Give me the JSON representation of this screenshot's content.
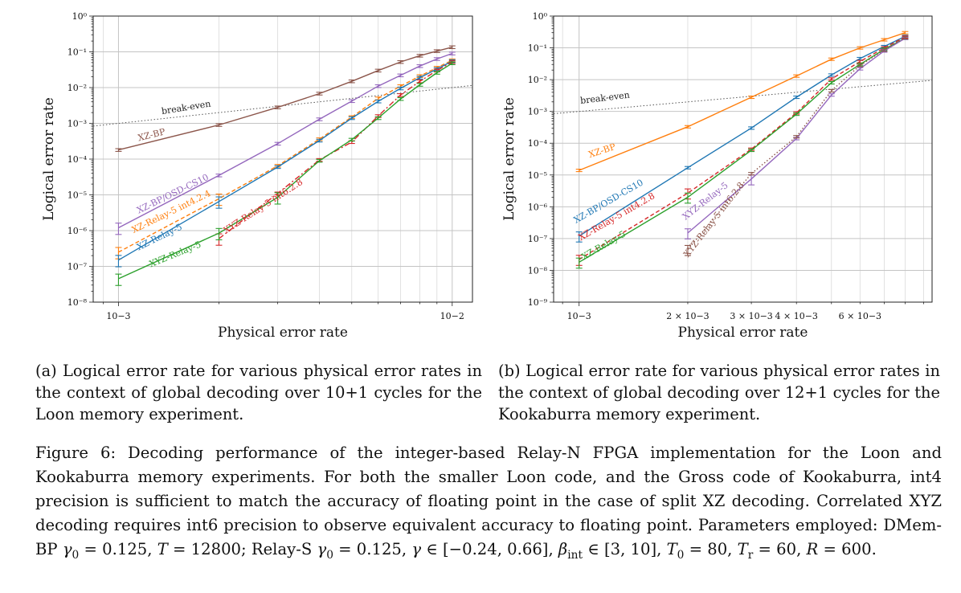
{
  "chart_data": [
    {
      "type": "line",
      "panel": "a",
      "xlabel": "Physical error rate",
      "ylabel": "Logical error rate",
      "xscale": "log",
      "yscale": "log",
      "xlim": [
        0.00084,
        0.0115
      ],
      "ylim": [
        1e-08,
        1
      ],
      "grid": true,
      "xticks": [
        {
          "value": 0.001,
          "label": "10−3"
        },
        {
          "value": 0.01,
          "label": "10−2"
        }
      ],
      "yticks": [
        {
          "value": 1,
          "label": "10⁰"
        },
        {
          "value": 0.1,
          "label": "10⁻¹"
        },
        {
          "value": 0.01,
          "label": "10⁻²"
        },
        {
          "value": 0.001,
          "label": "10⁻³"
        },
        {
          "value": 0.0001,
          "label": "10⁻⁴"
        },
        {
          "value": 1e-05,
          "label": "10⁻⁵"
        },
        {
          "value": 1e-06,
          "label": "10⁻⁶"
        },
        {
          "value": 1e-07,
          "label": "10⁻⁷"
        },
        {
          "value": 1e-08,
          "label": "10⁻⁸"
        }
      ],
      "series": [
        {
          "name": "break-even",
          "color": "#555555",
          "style": "dotted",
          "x": [
            0.00084,
            0.0115
          ],
          "y": [
            0.00084,
            0.0115
          ]
        },
        {
          "name": "XZ-BP",
          "color": "#8c564b",
          "style": "solid",
          "x": [
            0.001,
            0.002,
            0.003,
            0.004,
            0.005,
            0.006,
            0.007,
            0.008,
            0.009,
            0.01
          ],
          "y": [
            0.00018,
            0.0009,
            0.0028,
            0.0068,
            0.015,
            0.03,
            0.052,
            0.078,
            0.105,
            0.135
          ]
        },
        {
          "name": "XZ-BP/OSD-CS10",
          "color": "#9467bd",
          "style": "solid",
          "x": [
            0.001,
            0.002,
            0.003,
            0.004,
            0.005,
            0.006,
            0.007,
            0.008,
            0.009,
            0.01
          ],
          "y": [
            1.2e-06,
            3.5e-05,
            0.00027,
            0.0013,
            0.0042,
            0.011,
            0.022,
            0.04,
            0.063,
            0.09
          ]
        },
        {
          "name": "XZ-Relay-5 int4.2.4",
          "color": "#ff7f0e",
          "style": "dashed",
          "x": [
            0.001,
            0.002,
            0.003,
            0.004,
            0.005,
            0.006,
            0.007,
            0.008,
            0.009,
            0.01
          ],
          "y": [
            2.5e-07,
            7.8e-06,
            6.5e-05,
            0.00036,
            0.0015,
            0.005,
            0.011,
            0.021,
            0.036,
            0.058
          ]
        },
        {
          "name": "XZ-Relay-5",
          "color": "#1f77b4",
          "style": "solid",
          "x": [
            0.001,
            0.002,
            0.003,
            0.004,
            0.005,
            0.006,
            0.007,
            0.008,
            0.009,
            0.01
          ],
          "y": [
            1.5e-07,
            6.5e-06,
            6e-05,
            0.00033,
            0.0014,
            0.0041,
            0.0095,
            0.019,
            0.033,
            0.055
          ]
        },
        {
          "name": "XYZ-Relay-5 int6.2.8",
          "color": "#d62728",
          "style": "dashdot",
          "x": [
            0.002,
            0.003,
            0.004,
            0.005,
            0.006,
            0.007,
            0.008,
            0.009,
            0.01
          ],
          "y": [
            6e-07,
            1.1e-05,
            9.5e-05,
            0.0003,
            0.0016,
            0.0062,
            0.015,
            0.03,
            0.052
          ]
        },
        {
          "name": "XYZ-Relay-5",
          "color": "#2ca02c",
          "style": "solid",
          "x": [
            0.001,
            0.002,
            0.003,
            0.004,
            0.005,
            0.006,
            0.007,
            0.008,
            0.009,
            0.01
          ],
          "y": [
            4.5e-08,
            8.5e-07,
            8.5e-06,
            9e-05,
            0.00035,
            0.0014,
            0.0048,
            0.012,
            0.026,
            0.048
          ]
        }
      ]
    },
    {
      "type": "line",
      "panel": "b",
      "xlabel": "Physical error rate",
      "ylabel": "Logical error rate",
      "xscale": "log",
      "yscale": "log",
      "xlim": [
        0.00085,
        0.0095
      ],
      "ylim": [
        1e-09,
        1
      ],
      "grid": true,
      "xticks": [
        {
          "value": 0.001,
          "label": "10−3"
        },
        {
          "value": 0.002,
          "label": "2 × 10−3"
        },
        {
          "value": 0.003,
          "label": "3 × 10−3"
        },
        {
          "value": 0.004,
          "label": "4 × 10−3"
        },
        {
          "value": 0.006,
          "label": "6 × 10−3"
        }
      ],
      "yticks": [
        {
          "value": 1,
          "label": "10⁰"
        },
        {
          "value": 0.1,
          "label": "10⁻¹"
        },
        {
          "value": 0.01,
          "label": "10⁻²"
        },
        {
          "value": 0.001,
          "label": "10⁻³"
        },
        {
          "value": 0.0001,
          "label": "10⁻⁴"
        },
        {
          "value": 1e-05,
          "label": "10⁻⁵"
        },
        {
          "value": 1e-06,
          "label": "10⁻⁶"
        },
        {
          "value": 1e-07,
          "label": "10⁻⁷"
        },
        {
          "value": 1e-08,
          "label": "10⁻⁸"
        },
        {
          "value": 1e-09,
          "label": "10⁻⁹"
        }
      ],
      "series": [
        {
          "name": "break-even",
          "color": "#555555",
          "style": "dotted",
          "x": [
            0.00085,
            0.0095
          ],
          "y": [
            0.00085,
            0.0095
          ]
        },
        {
          "name": "XZ-BP",
          "color": "#ff7f0e",
          "style": "solid",
          "x": [
            0.001,
            0.002,
            0.003,
            0.004,
            0.005,
            0.006,
            0.007,
            0.008
          ],
          "y": [
            1.4e-05,
            0.00033,
            0.0028,
            0.013,
            0.044,
            0.1,
            0.18,
            0.3
          ]
        },
        {
          "name": "XZ-BP/OSD-CS10",
          "color": "#1f77b4",
          "style": "solid",
          "x": [
            0.001,
            0.002,
            0.003,
            0.004,
            0.005,
            0.006,
            0.007,
            0.008
          ],
          "y": [
            1.2e-07,
            1.7e-05,
            0.0003,
            0.0028,
            0.014,
            0.046,
            0.11,
            0.23
          ]
        },
        {
          "name": "XZ-Relay-5 int4.2.8",
          "color": "#d62728",
          "style": "dashed",
          "x": [
            0.001,
            0.002,
            0.003,
            0.004,
            0.005,
            0.006,
            0.007,
            0.008
          ],
          "y": [
            2.2e-08,
            2.7e-06,
            6.5e-05,
            0.0009,
            0.0105,
            0.037,
            0.1,
            0.22
          ]
        },
        {
          "name": "XZ-Relay-5",
          "color": "#2ca02c",
          "style": "solid",
          "x": [
            0.001,
            0.002,
            0.003,
            0.004,
            0.005,
            0.006,
            0.007,
            0.008
          ],
          "y": [
            1.8e-08,
            2e-06,
            6e-05,
            0.00082,
            0.008,
            0.03,
            0.09,
            0.2
          ]
        },
        {
          "name": "XYZ-Relay-5",
          "color": "#9467bd",
          "style": "solid",
          "x": [
            0.002,
            0.003,
            0.004,
            0.005,
            0.006,
            0.007,
            0.008
          ],
          "y": [
            1.5e-07,
            7.5e-06,
            0.00014,
            0.0033,
            0.022,
            0.08,
            0.2
          ]
        },
        {
          "name": "XYZ-Relay-5 int6.2.8",
          "color": "#8c564b",
          "style": "dotted",
          "x": [
            0.002,
            0.003,
            0.004,
            0.005,
            0.006,
            0.007,
            0.008
          ],
          "y": [
            4.5e-08,
            1.1e-05,
            0.00016,
            0.0045,
            0.028,
            0.085,
            0.21
          ]
        }
      ]
    }
  ],
  "captions": {
    "a": "(a) Logical error rate for various physical error rates in the context of global decoding over 10+1 cycles for the Loon memory experiment.",
    "b": "(b) Logical error rate for various physical error rates in the context of global decoding over 12+1 cycles for the Kookaburra memory experiment.",
    "figure_main": "Figure 6: Decoding performance of the integer-based Relay-N FPGA implementation for the Loon and Kookaburra memory experiments. For both the smaller Loon code, and the Gross code of Kookaburra, int4 precision is sufficient to match the accuracy of floating point in the case of split XZ decoding. Correlated XYZ decoding requires int6 precision to observe equivalent accuracy to floating point. Parameters employed: DMem-BP",
    "param_dmem_gamma": "γ",
    "param_dmem_gamma_sub": "0",
    "param_dmem_gamma_val": " = 0.125, ",
    "param_T": "T",
    "param_T_val": " = 12800; Relay-S ",
    "param_relay_gamma": "γ",
    "param_relay_gamma_sub": "0",
    "param_relay_gamma_val": " = 0.125, ",
    "param_gamma_range": "γ",
    "param_gamma_range_val": " ∈ [−0.24, 0.66], ",
    "param_beta": "β",
    "param_beta_sub": "int",
    "param_beta_val": " ∈ [3, 10], ",
    "param_T0": "T",
    "param_T0_sub": "0",
    "param_T0_val": " = 80, ",
    "param_Tr": "T",
    "param_Tr_sub": "r",
    "param_Tr_val": " = 60, ",
    "param_R": "R",
    "param_R_val": " = 600."
  }
}
